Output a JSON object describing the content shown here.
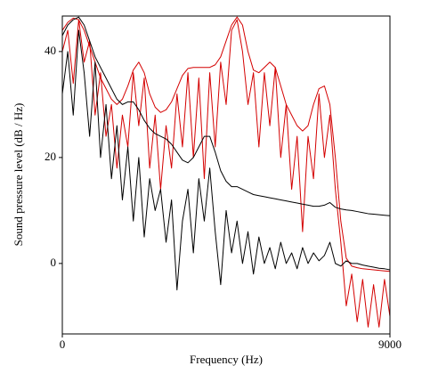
{
  "chart_data": {
    "type": "line",
    "xlabel": "Frequency (Hz)",
    "ylabel": "Sound pressure level (dB / Hz)",
    "x": [
      0,
      150,
      300,
      450,
      600,
      750,
      900,
      1050,
      1200,
      1350,
      1500,
      1650,
      1800,
      1950,
      2100,
      2250,
      2400,
      2550,
      2700,
      2850,
      3000,
      3150,
      3300,
      3450,
      3600,
      3750,
      3900,
      4050,
      4200,
      4350,
      4500,
      4650,
      4800,
      4950,
      5100,
      5250,
      5400,
      5550,
      5700,
      5850,
      6000,
      6150,
      6300,
      6450,
      6600,
      6750,
      6900,
      7050,
      7200,
      7350,
      7500,
      7650,
      7800,
      7950,
      8100,
      8250,
      8400,
      8550,
      8700,
      8850,
      9000
    ],
    "series": [
      {
        "color": "#d40000",
        "values": [
          40,
          44,
          34,
          46,
          38,
          42,
          28,
          36,
          24,
          30,
          18,
          28,
          22,
          36,
          26,
          35,
          18,
          28,
          14,
          26,
          18,
          32,
          22,
          36,
          20,
          35,
          16,
          36,
          22,
          38,
          30,
          44,
          46,
          40,
          30,
          36,
          22,
          36,
          26,
          37,
          20,
          30,
          14,
          24,
          6,
          24,
          16,
          32,
          20,
          28,
          14,
          4,
          -8,
          -2,
          -11,
          -3,
          -12,
          -4,
          -12,
          -3,
          -10
        ]
      },
      {
        "color": "#d40000",
        "values": [
          44,
          45.5,
          46.3,
          46,
          44,
          41,
          38,
          35,
          33,
          31,
          30,
          31,
          33.5,
          36.5,
          38,
          36,
          32,
          29.5,
          28.5,
          29,
          30.5,
          33,
          35.5,
          36.8,
          37,
          37,
          37,
          37,
          37.5,
          39,
          42,
          45,
          46.5,
          45,
          40,
          36.5,
          36,
          37,
          38,
          37,
          33.5,
          30,
          28,
          26,
          25,
          26,
          30,
          33,
          33.5,
          30,
          20,
          8,
          1,
          -0.5,
          -0.8,
          -1,
          -1.1,
          -1.2,
          -1.3,
          -1.4,
          -1.5
        ]
      },
      {
        "color": "#000000",
        "values": [
          32,
          40,
          28,
          44,
          36,
          24,
          38,
          20,
          30,
          16,
          26,
          12,
          22,
          8,
          20,
          5,
          16,
          10,
          14,
          4,
          12,
          -5,
          8,
          14,
          2,
          16,
          8,
          18,
          6,
          -4,
          10,
          2,
          8,
          0,
          6,
          -2,
          5,
          0,
          3,
          -1,
          4,
          0,
          2,
          -1,
          3,
          0,
          2,
          0.5,
          1.5,
          4,
          0,
          -0.5,
          0.5,
          0,
          0,
          -0.3,
          -0.5,
          -0.7,
          -0.9,
          -1,
          -1.2
        ]
      },
      {
        "color": "#000000",
        "values": [
          43,
          45,
          46,
          46.5,
          45,
          42,
          39,
          37,
          35,
          33,
          31,
          30,
          30.5,
          30.5,
          29,
          27,
          25.5,
          24.5,
          24,
          23.5,
          22.5,
          21,
          19.5,
          19,
          20,
          22,
          24,
          24,
          21,
          17.5,
          15.5,
          14.5,
          14.5,
          14,
          13.5,
          13,
          12.8,
          12.6,
          12.4,
          12.2,
          12,
          11.8,
          11.6,
          11.4,
          11.2,
          11,
          10.8,
          10.8,
          11,
          11.5,
          10.6,
          10.3,
          10.1,
          10,
          9.8,
          9.6,
          9.4,
          9.3,
          9.2,
          9.1,
          9
        ]
      }
    ],
    "xlim": [
      0,
      9000
    ],
    "xticks": [
      0,
      9000
    ],
    "ylim": [
      -13.3,
      46.7
    ],
    "yticks": [
      0,
      20,
      40
    ]
  }
}
